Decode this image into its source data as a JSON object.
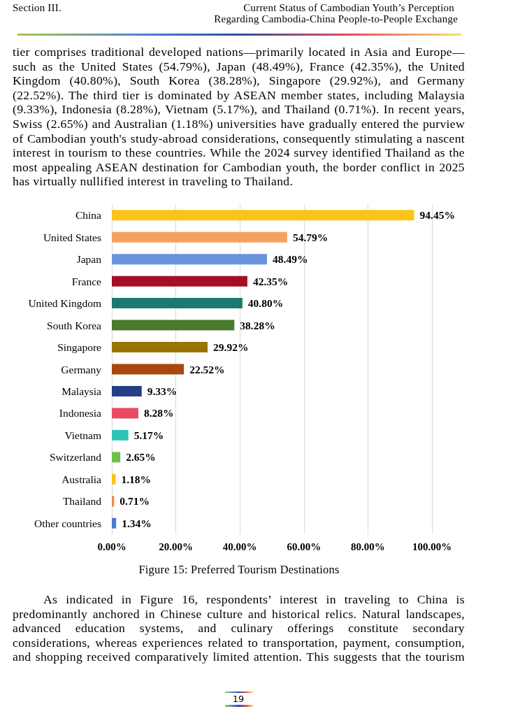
{
  "chart_data": {
    "type": "bar",
    "orientation": "horizontal",
    "title": "Figure 15: Preferred Tourism Destinations",
    "categories": [
      "China",
      "United States",
      "Japan",
      "France",
      "United Kingdom",
      "South Korea",
      "Singapore",
      "Germany",
      "Malaysia",
      "Indonesia",
      "Vietnam",
      "Switzerland",
      "Australia",
      "Thailand",
      "Other countries"
    ],
    "values": [
      94.45,
      54.79,
      48.49,
      42.35,
      40.8,
      38.28,
      29.92,
      22.52,
      9.33,
      8.28,
      5.17,
      2.65,
      1.18,
      0.71,
      1.34
    ],
    "colors": [
      "#fcc419",
      "#f4a25e",
      "#6a93dc",
      "#a50f24",
      "#1b7a6e",
      "#4a7a2e",
      "#9a7400",
      "#a8480d",
      "#233f85",
      "#e84a5f",
      "#2ec4b6",
      "#6cc04a",
      "#fcc419",
      "#f08a3c",
      "#4a7bd6"
    ],
    "value_labels": [
      "94.45%",
      "54.79%",
      "48.49%",
      "42.35%",
      "40.80%",
      "38.28%",
      "29.92%",
      "22.52%",
      "9.33%",
      "8.28%",
      "5.17%",
      "2.65%",
      "1.18%",
      "0.71%",
      "1.34%"
    ],
    "xlim": [
      0,
      100
    ],
    "xticks": [
      {
        "value": 0,
        "label": "0.00%"
      },
      {
        "value": 20,
        "label": "20.00%"
      },
      {
        "value": 40,
        "label": "40.00%"
      },
      {
        "value": 60,
        "label": "60.00%"
      },
      {
        "value": 80,
        "label": "80.00%"
      },
      {
        "value": 100,
        "label": "100.00%"
      }
    ],
    "grid": "x",
    "annotations": [
      "Section III.",
      "Current Status of Cambodian Youth’s Perception",
      "Regarding Cambodia-China People-to-People Exchange",
      "tier comprises traditional developed nations—primarily located in Asia and Europe—such as the United States (54.79%), Japan (48.49%), France (42.35%), the United Kingdom (40.80%), South Korea (38.28%), Singapore (29.92%), and Germany (22.52%). The third tier is dominated by ASEAN member states, including Malaysia (9.33%), Indonesia (8.28%), Vietnam (5.17%), and Thailand (0.71%). In recent years, Swiss (2.65%) and Australian (1.18%) universities have gradually entered the purview of Cambodian youth's study-abroad considerations, consequently stimulating a nascent interest in tourism to these countries. While the 2024 survey identified Thailand as the most appealing ASEAN destination for Cambodian youth, the border conflict in 2025 has virtually nullified interest in traveling to Thailand.",
      "As indicated in Figure 16, respondents’ interest in traveling to China is predominantly anchored in Chinese culture and historical relics. Natural landscapes, advanced education systems, and culinary offerings constitute secondary considerations, whereas experiences related to transportation, payment, consumption, and shopping received comparatively limited attention. This suggests that the tourism",
      "19"
    ]
  }
}
